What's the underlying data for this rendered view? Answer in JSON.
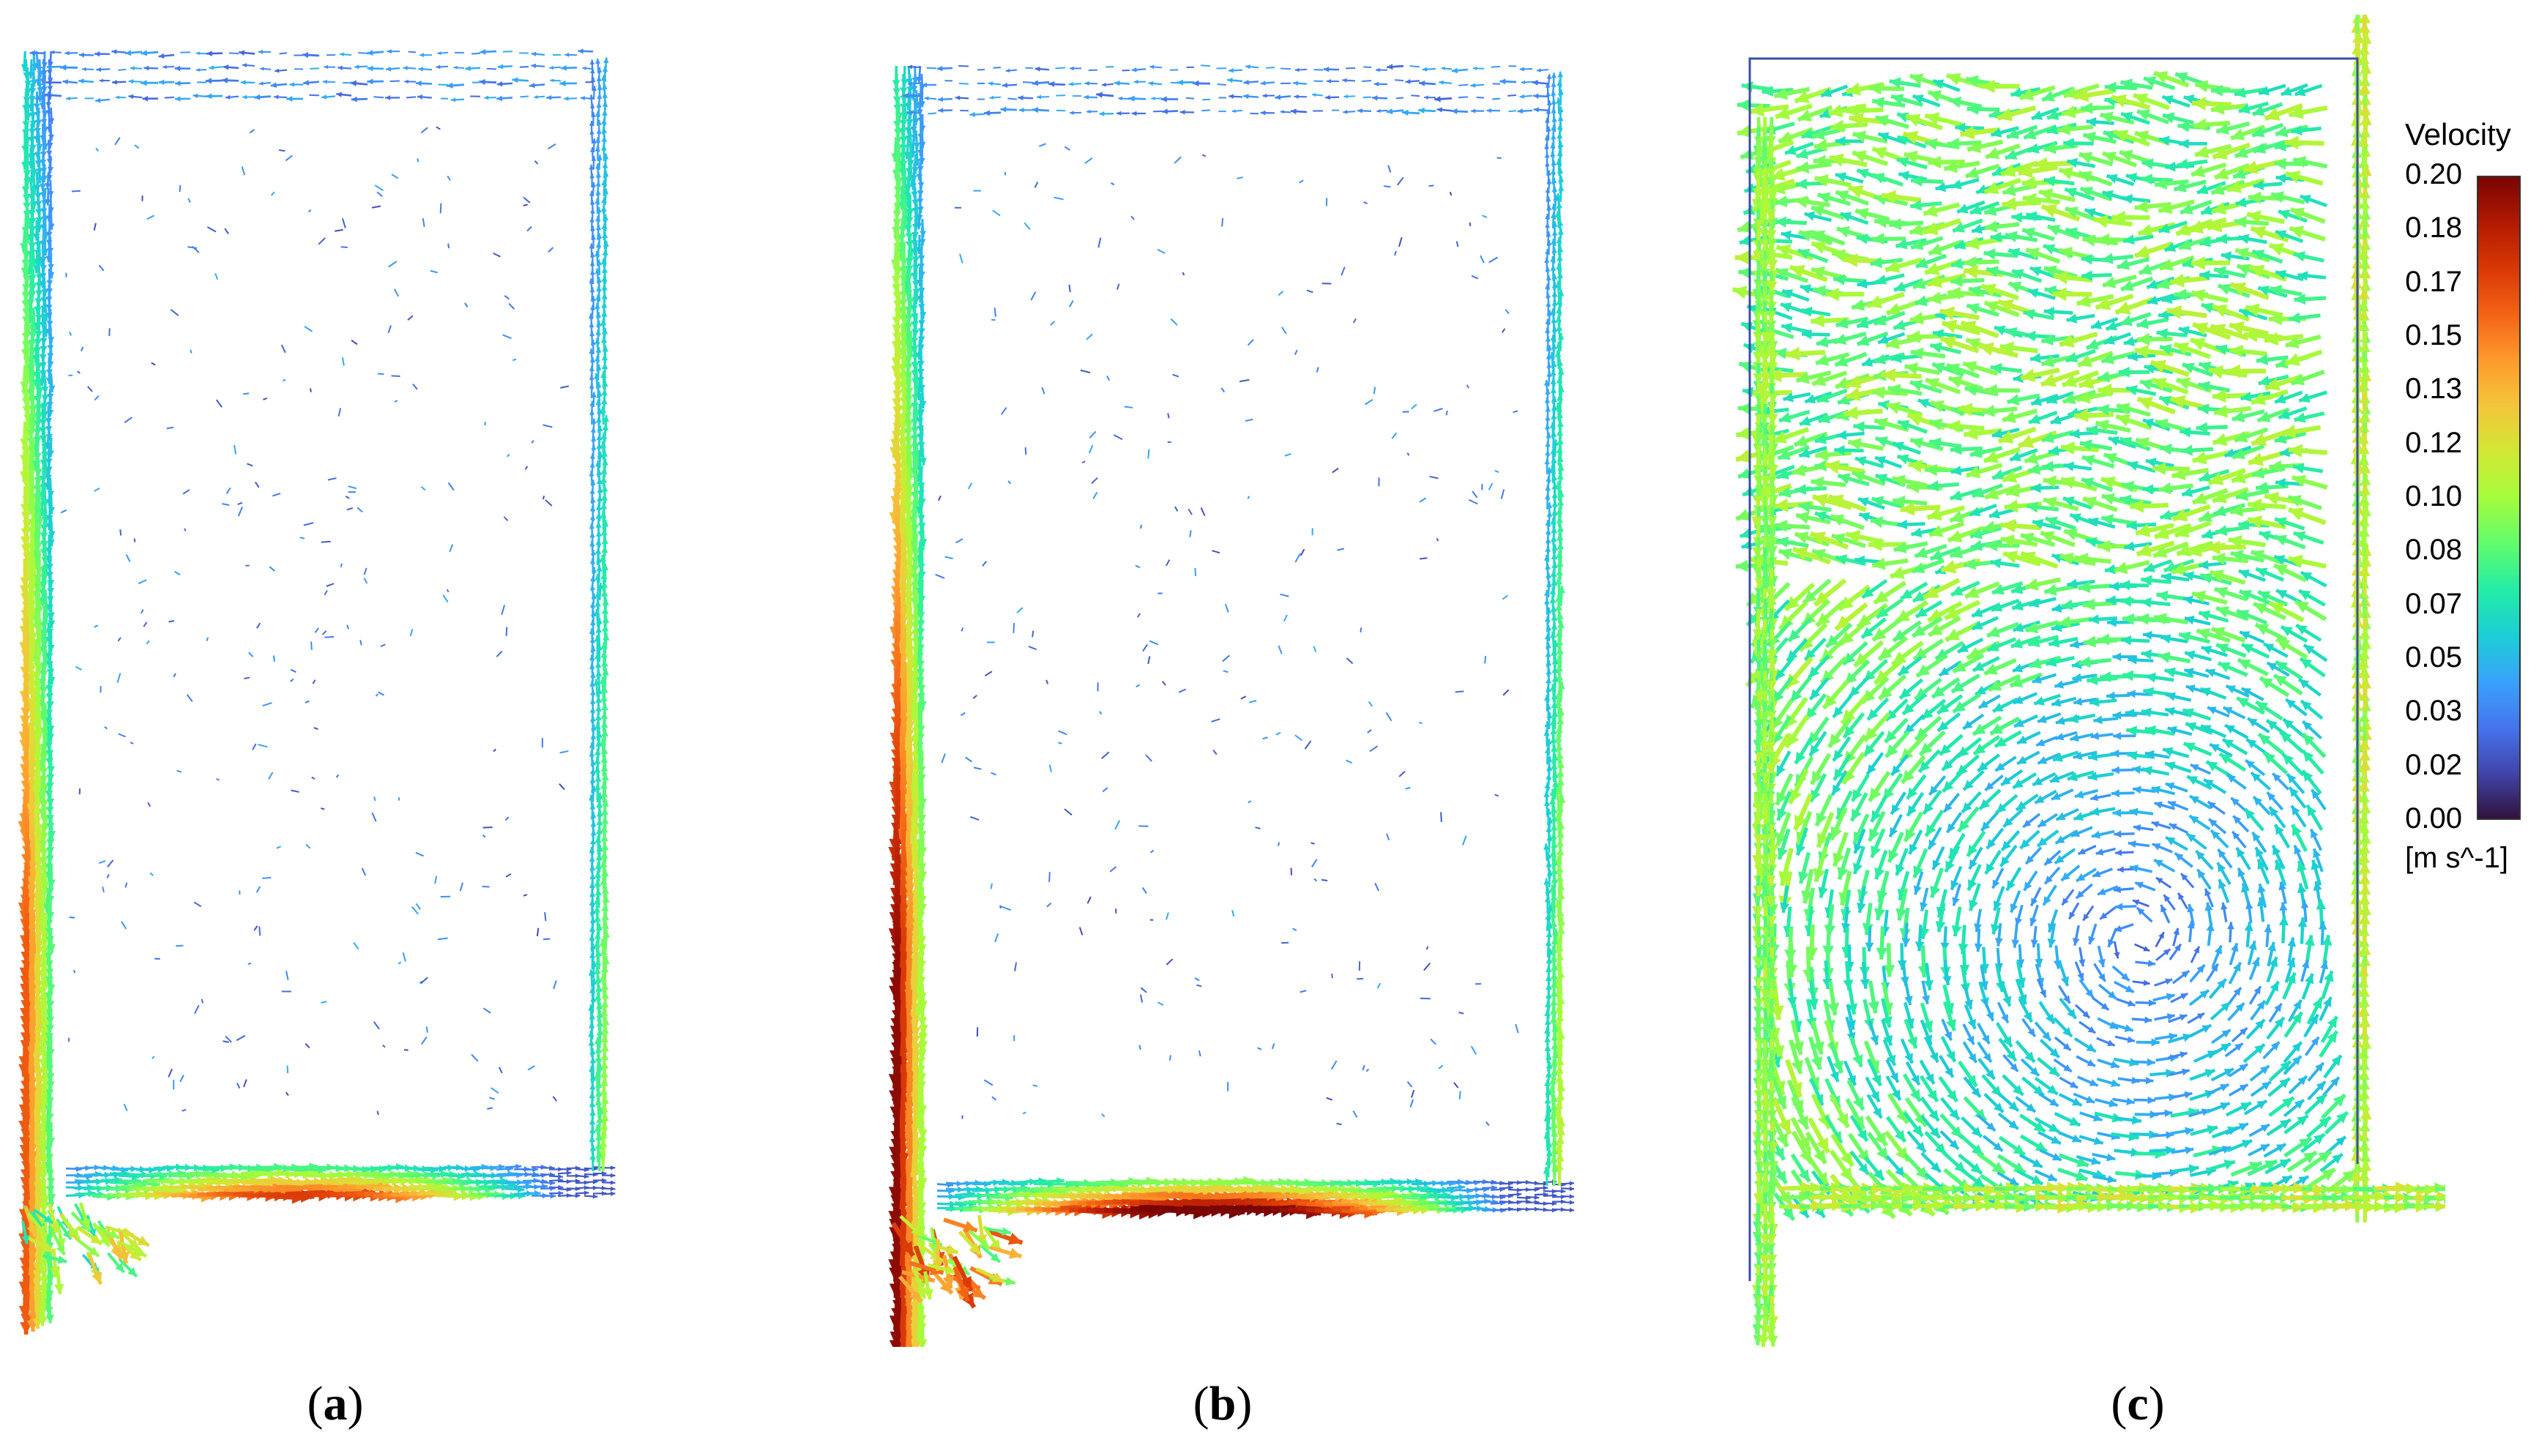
{
  "panels": [
    {
      "id": "a",
      "caption": "a"
    },
    {
      "id": "b",
      "caption": "b"
    },
    {
      "id": "c",
      "caption": "c"
    }
  ],
  "legend": {
    "title": "Velocity",
    "units": "[m s^-1]",
    "ticks": [
      "0.20",
      "0.18",
      "0.17",
      "0.15",
      "0.13",
      "0.12",
      "0.10",
      "0.08",
      "0.07",
      "0.05",
      "0.03",
      "0.02",
      "0.00"
    ],
    "range": [
      0.0,
      0.2
    ],
    "colormap": [
      "#30123b",
      "#4145ab",
      "#4675ed",
      "#39a2fc",
      "#1bcfd4",
      "#24eca6",
      "#61fc6c",
      "#a4fc3b",
      "#d1e834",
      "#f3c63a",
      "#fe9b2d",
      "#f36315",
      "#d93806",
      "#b11901",
      "#7a0403"
    ]
  }
}
